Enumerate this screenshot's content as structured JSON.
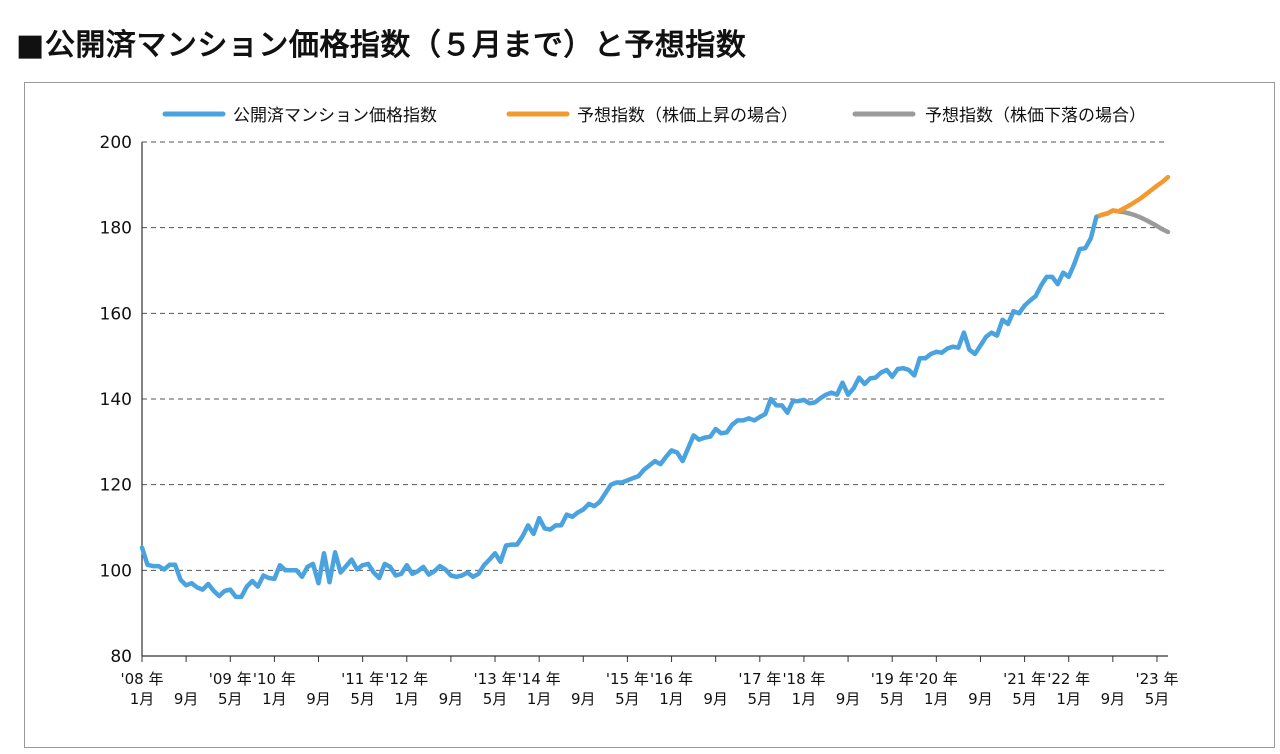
{
  "page": {
    "title": "■公開済マンション価格指数（５月まで）と予想指数"
  },
  "colors": {
    "actual": "#4aa3df",
    "forecast_up": "#f39a2f",
    "forecast_down": "#9b9b9b",
    "grid": "#555555",
    "frame": "#9a9a9a"
  },
  "chart_data": {
    "type": "line",
    "title": "",
    "xlabel": "",
    "ylabel": "",
    "ylim": [
      80,
      200
    ],
    "yticks": [
      80,
      100,
      120,
      140,
      160,
      180,
      200
    ],
    "grid": "horizontal dashed",
    "legend_position": "top",
    "x_tick_labels": [
      {
        "month_index": 0,
        "year": "'08 年",
        "month": "1月"
      },
      {
        "month_index": 8,
        "year": "",
        "month": "9月"
      },
      {
        "month_index": 16,
        "year": "'09 年",
        "month": "5月"
      },
      {
        "month_index": 24,
        "year": "'10 年",
        "month": "1月"
      },
      {
        "month_index": 32,
        "year": "",
        "month": "9月"
      },
      {
        "month_index": 40,
        "year": "'11 年",
        "month": "5月"
      },
      {
        "month_index": 48,
        "year": "'12 年",
        "month": "1月"
      },
      {
        "month_index": 56,
        "year": "",
        "month": "9月"
      },
      {
        "month_index": 64,
        "year": "'13 年",
        "month": "5月"
      },
      {
        "month_index": 72,
        "year": "'14 年",
        "month": "1月"
      },
      {
        "month_index": 80,
        "year": "",
        "month": "9月"
      },
      {
        "month_index": 88,
        "year": "'15 年",
        "month": "5月"
      },
      {
        "month_index": 96,
        "year": "'16 年",
        "month": "1月"
      },
      {
        "month_index": 104,
        "year": "",
        "month": "9月"
      },
      {
        "month_index": 112,
        "year": "'17 年",
        "month": "5月"
      },
      {
        "month_index": 120,
        "year": "'18 年",
        "month": "1月"
      },
      {
        "month_index": 128,
        "year": "",
        "month": "9月"
      },
      {
        "month_index": 136,
        "year": "'19 年",
        "month": "5月"
      },
      {
        "month_index": 144,
        "year": "'20 年",
        "month": "1月"
      },
      {
        "month_index": 152,
        "year": "",
        "month": "9月"
      },
      {
        "month_index": 160,
        "year": "'21 年",
        "month": "5月"
      },
      {
        "month_index": 168,
        "year": "'22 年",
        "month": "1月"
      },
      {
        "month_index": 176,
        "year": "",
        "month": "9月"
      },
      {
        "month_index": 184,
        "year": "'23 年",
        "month": "5月"
      }
    ],
    "x_range": [
      0,
      186
    ],
    "series": [
      {
        "name": "公開済マンション価格指数",
        "color": "#4aa3df",
        "start_month_index": 0,
        "values": [
          105.3,
          101.3,
          101.0,
          101.0,
          100.2,
          101.3,
          101.3,
          97.8,
          96.5,
          97.0,
          96.0,
          95.5,
          96.8,
          95.2,
          94.0,
          95.2,
          95.5,
          93.8,
          93.8,
          96.2,
          97.5,
          96.2,
          98.8,
          98.2,
          98.0,
          101.2,
          100.0,
          100.0,
          100.0,
          98.5,
          100.8,
          101.5,
          97.0,
          104.0,
          97.2,
          104.2,
          99.5,
          101.0,
          102.5,
          100.2,
          101.2,
          101.5,
          99.5,
          98.2,
          101.5,
          100.8,
          98.8,
          99.2,
          101.2,
          99.2,
          99.8,
          100.8,
          99.0,
          99.8,
          101.0,
          100.2,
          98.8,
          98.5,
          98.8,
          99.5,
          98.5,
          99.2,
          101.2,
          102.5,
          104.0,
          102.0,
          105.8,
          106.0,
          106.0,
          108.0,
          110.5,
          108.5,
          112.2,
          109.8,
          109.5,
          110.5,
          110.5,
          113.0,
          112.5,
          113.5,
          114.2,
          115.5,
          115.0,
          116.0,
          118.0,
          120.0,
          120.5,
          120.5,
          121.0,
          121.5,
          122.0,
          123.5,
          124.5,
          125.5,
          124.8,
          126.5,
          128.0,
          127.5,
          125.5,
          128.5,
          131.5,
          130.5,
          131.0,
          131.2,
          133.0,
          132.0,
          132.2,
          134.0,
          135.0,
          135.0,
          135.5,
          135.0,
          135.8,
          136.5,
          140.0,
          138.5,
          138.5,
          136.8,
          139.5,
          139.5,
          139.8,
          139.0,
          139.2,
          140.2,
          141.0,
          141.5,
          141.0,
          143.8,
          141.0,
          142.5,
          145.0,
          143.5,
          144.8,
          145.0,
          146.2,
          146.8,
          145.2,
          147.0,
          147.2,
          146.8,
          145.5,
          149.5,
          149.5,
          150.5,
          151.0,
          150.8,
          151.8,
          152.2,
          152.0,
          155.5,
          151.5,
          150.5,
          152.5,
          154.5,
          155.5,
          154.8,
          158.5,
          157.5,
          160.5,
          160.0,
          161.8,
          163.0,
          164.0,
          166.5,
          168.5,
          168.5,
          166.8,
          169.5,
          168.5,
          171.5,
          175.0,
          175.2,
          177.5,
          182.5
        ]
      },
      {
        "name": "予想指数（株価上昇の場合）",
        "color": "#f39a2f",
        "start_month_index": 173,
        "values": [
          182.5,
          183.0,
          183.3,
          184.0,
          183.8,
          184.5,
          185.2,
          186.0,
          186.8,
          187.8,
          188.8,
          189.8,
          190.7,
          191.8
        ]
      },
      {
        "name": "予想指数（株価下落の場合）",
        "color": "#9b9b9b",
        "start_month_index": 173,
        "values": [
          182.5,
          183.0,
          183.3,
          184.0,
          183.8,
          183.6,
          183.3,
          182.9,
          182.4,
          181.8,
          181.1,
          180.4,
          179.6,
          179.0
        ]
      }
    ]
  }
}
